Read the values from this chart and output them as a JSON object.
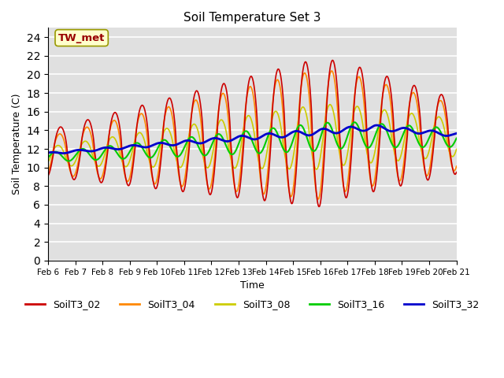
{
  "title": "Soil Temperature Set 3",
  "xlabel": "Time",
  "ylabel": "Soil Temperature (C)",
  "xlim": [
    0,
    15
  ],
  "ylim": [
    0,
    25
  ],
  "yticks": [
    0,
    2,
    4,
    6,
    8,
    10,
    12,
    14,
    16,
    18,
    20,
    22,
    24
  ],
  "xtick_labels": [
    "Feb 6",
    "Feb 7",
    "Feb 8",
    "Feb 9",
    "Feb 10",
    "Feb 11",
    "Feb 12",
    "Feb 13",
    "Feb 14",
    "Feb 15",
    "Feb 16",
    "Feb 17",
    "Feb 18",
    "Feb 19",
    "Feb 20",
    "Feb 21"
  ],
  "annotation_text": "TW_met",
  "annotation_color": "#990000",
  "annotation_bg": "#ffffcc",
  "bg_color": "#e0e0e0",
  "series": {
    "SoilT3_02": {
      "color": "#cc0000",
      "linewidth": 1.2
    },
    "SoilT3_04": {
      "color": "#ff8800",
      "linewidth": 1.2
    },
    "SoilT3_08": {
      "color": "#cccc00",
      "linewidth": 1.2
    },
    "SoilT3_16": {
      "color": "#00cc00",
      "linewidth": 1.2
    },
    "SoilT3_32": {
      "color": "#0000cc",
      "linewidth": 2.0
    }
  }
}
